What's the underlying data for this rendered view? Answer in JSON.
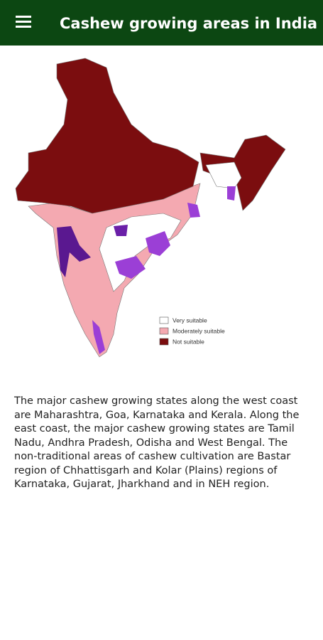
{
  "header": {
    "title": "Cashew growing areas in India"
  },
  "map": {
    "legend": [
      "Very suitable",
      "Moderately suitable",
      "Not suitable"
    ]
  },
  "body": {
    "text": "The major cashew growing states along the west coast are Maharashtra, Goa, Karnataka and Kerala. Along the east coast, the major cashew growing states are Tamil Nadu, Andhra Pradesh, Odisha and West Bengal. The non-traditional areas of cashew cultivation are Bastar region of Chhattisgarh and Kolar (Plains) regions of Karnataka, Gujarat, Jharkhand and in NEH region."
  }
}
